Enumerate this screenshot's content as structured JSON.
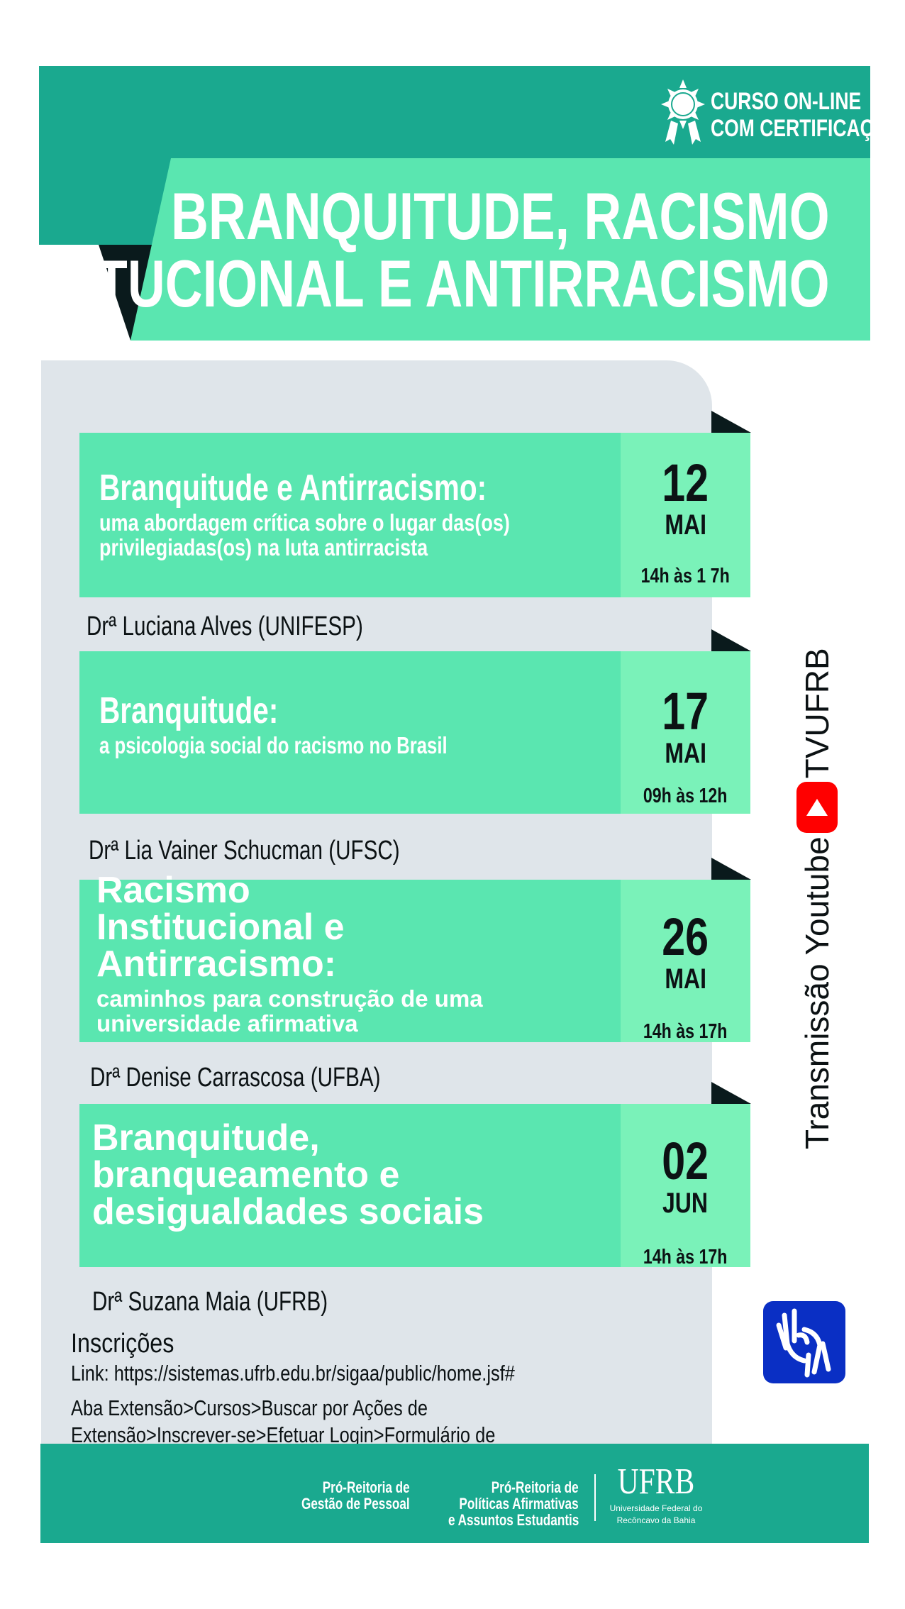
{
  "colors": {
    "teal": "#1aa98f",
    "banner": "#5ae6b0",
    "card": "#5ae6b0",
    "date": "#7af2b9",
    "dark": "#0a1a1c",
    "youtube": "#ff0000",
    "libras": "#0a2fc4"
  },
  "badge": {
    "icon": "certificate-medal-icon",
    "line1": "CURSO  ON-LINE",
    "line2": "COM CERTIFICAÇÃO"
  },
  "title": {
    "line1": "BRANQUITUDE, RACISMO",
    "line2": "INSTITUCIONAL  E ANTIRRACISMO"
  },
  "sessions": [
    {
      "title": "Branquitude e Antirracismo:",
      "subtitle": "uma abordagem crítica sobre o lugar das(os) privilegiadas(os) na luta antirracista",
      "day": "12",
      "month": "MAI",
      "time": "14h às 1 7h",
      "speaker": "Drª Luciana Alves (UNIFESP)"
    },
    {
      "title": "Branquitude:",
      "subtitle": "a psicologia social do racismo no Brasil",
      "day": "17",
      "month": "MAI",
      "time": "09h às 12h",
      "speaker": "Drª Lia Vainer Schucman (UFSC)"
    },
    {
      "title": "Racismo Institucional e Antirracismo:",
      "subtitle": "caminhos para construção de uma universidade afirmativa",
      "day": "26",
      "month": "MAI",
      "time": "14h às 17h",
      "speaker": "Drª Denise Carrascosa (UFBA)"
    },
    {
      "title": "Branquitude, branqueamento e desigualdades sociais",
      "subtitle": "",
      "day": "02",
      "month": "JUN",
      "time": "14h às 17h",
      "speaker": "Drª Suzana Maia (UFRB)"
    }
  ],
  "stream": {
    "prefix": "Transmissão Youtube",
    "channel": "TVUFRB",
    "icon": "youtube-icon"
  },
  "libras_icon": "sign-language-icon",
  "registration": {
    "heading": "Inscrições",
    "link": "Link: https://sistemas.ufrb.edu.br/sigaa/public/home.jsf#",
    "path_line1": "Aba Extensão>Cursos>Buscar por Ações de",
    "path_line2": "Extensão>Inscrever-se>Efetuar Login>Formulário de"
  },
  "footer": {
    "org1": [
      "Pró-Reitoria de",
      "Gestão de Pessoal"
    ],
    "org2": [
      "Pró-Reitoria de",
      "Políticas Afirmativas",
      "e Assuntos Estudantis"
    ],
    "ufrb_logo": "UFRB",
    "ufrb_name": [
      "Universidade Federal do",
      "Recôncavo da Bahia"
    ]
  }
}
